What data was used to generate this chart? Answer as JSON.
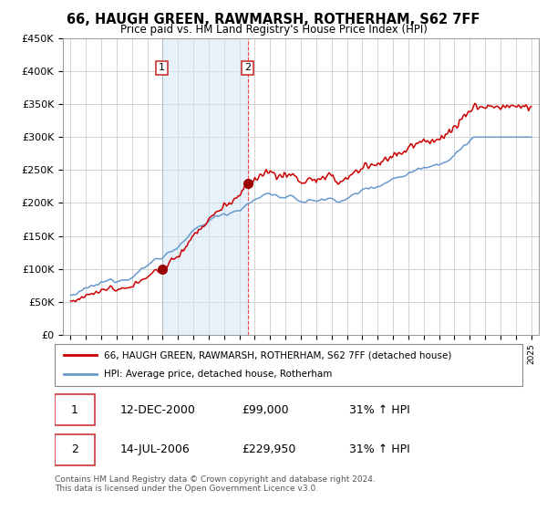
{
  "title": "66, HAUGH GREEN, RAWMARSH, ROTHERHAM, S62 7FF",
  "subtitle": "Price paid vs. HM Land Registry's House Price Index (HPI)",
  "ylim": [
    0,
    450000
  ],
  "yticks": [
    0,
    50000,
    100000,
    150000,
    200000,
    250000,
    300000,
    350000,
    400000,
    450000
  ],
  "ytick_labels": [
    "£0",
    "£50K",
    "£100K",
    "£150K",
    "£200K",
    "£250K",
    "£300K",
    "£350K",
    "£400K",
    "£450K"
  ],
  "legend_line1": "66, HAUGH GREEN, RAWMARSH, ROTHERHAM, S62 7FF (detached house)",
  "legend_line2": "HPI: Average price, detached house, Rotherham",
  "line_color_red": "#cc0000",
  "line_color_blue": "#6699cc",
  "purchase1_date": 2000.95,
  "purchase1_price": 99000,
  "purchase2_date": 2006.54,
  "purchase2_price": 229950,
  "table": [
    [
      "1",
      "12-DEC-2000",
      "£99,000",
      "31% ↑ HPI"
    ],
    [
      "2",
      "14-JUL-2006",
      "£229,950",
      "31% ↑ HPI"
    ]
  ],
  "footnote": "Contains HM Land Registry data © Crown copyright and database right 2024.\nThis data is licensed under the Open Government Licence v3.0."
}
